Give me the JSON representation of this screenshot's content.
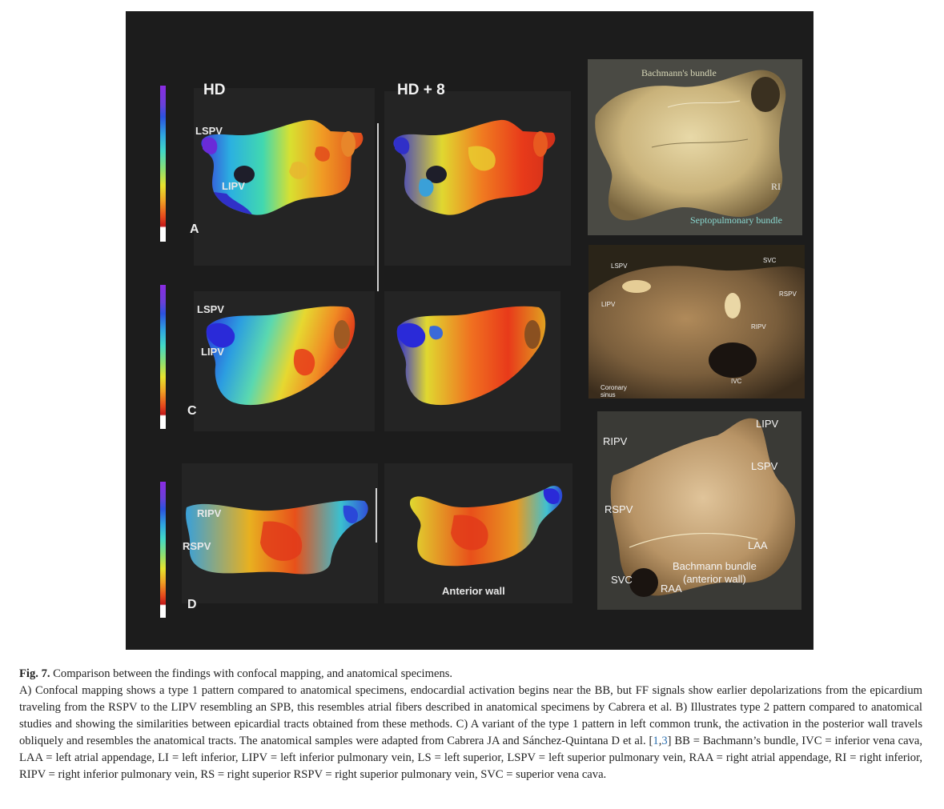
{
  "figure": {
    "columns": {
      "hd": "HD",
      "hd8": "HD + 8"
    },
    "rows": {
      "a": {
        "letter": "A",
        "labels": {
          "lspv": "LSPV",
          "lipv": "LIPV"
        }
      },
      "c": {
        "letter": "C",
        "labels": {
          "lspv": "LSPV",
          "lipv": "LIPV"
        }
      },
      "d": {
        "letter": "D",
        "labels": {
          "ripv": "RIPV",
          "rspv": "RSPV"
        },
        "bottom_label": "Anterior wall"
      }
    },
    "specimens": {
      "top": {
        "bachmann": "Bachmann's bundle",
        "septopulmonary": "Septopulmonary bundle",
        "ri": "RI"
      },
      "middle": {
        "lspv": "LSPV",
        "svc": "SVC",
        "lipv": "LIPV",
        "rspv": "RSPV",
        "ripv": "RIPV",
        "ivc": "IVC",
        "coronary": "Coronary",
        "sinus": "sinus"
      },
      "bottom": {
        "ripv": "RIPV",
        "lipv": "LIPV",
        "lspv": "LSPV",
        "rspv": "RSPV",
        "laa": "LAA",
        "bachmann": "Bachmann bundle",
        "anterior": "(anterior wall)",
        "svc": "SVC",
        "raa": "RAA"
      }
    }
  },
  "caption": {
    "label": "Fig. 7.",
    "title": "Comparison between the findings with confocal mapping, and anatomical specimens.",
    "body_before_refs": "A) Confocal mapping shows a type 1 pattern compared to anatomical specimens, endocardial activation begins near the BB, but FF signals show earlier depolarizations from the epicardium traveling from the RSPV to the LIPV resembling an SPB, this resembles atrial fibers described in anatomical specimens by Cabrera et al. B) Illustrates type 2 pattern compared to anatomical studies and showing the similarities between epicardial tracts obtained from these methods. C) A variant of the type 1 pattern in left common trunk, the activation in the posterior wall travels obliquely and resembles the anatomical tracts. The anatomical samples were adapted from Cabrera JA and Sánchez-Quintana D et al. [",
    "ref1": "1",
    "ref_sep": ",",
    "ref2": "3",
    "body_after_refs": "] BB = Bachmann’s bundle, IVC = inferior vena cava, LAA = left atrial appendage, LI = left inferior, LIPV = left inferior pulmonary vein, LS = left superior, LSPV = left superior pulmonary vein, RAA = right atrial appendage, RI = right inferior, RIPV = right inferior pulmonary vein, RS = right superior RSPV = right superior pulmonary vein, SVC = superior vena cava."
  }
}
